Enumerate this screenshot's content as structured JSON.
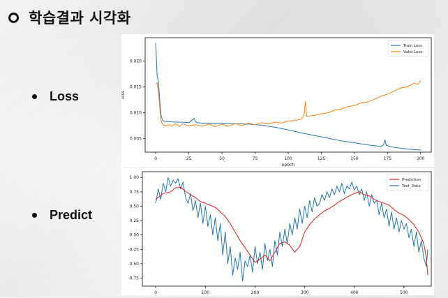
{
  "slide": {
    "title": "학습결과 시각화",
    "bullets": [
      {
        "label": "Loss"
      },
      {
        "label": "Predict"
      }
    ]
  },
  "chart_data": [
    {
      "type": "line",
      "xlabel": "epoch",
      "ylabel": "loss",
      "xlim": [
        -8,
        208
      ],
      "ylim": [
        0.0024,
        0.0245
      ],
      "xticks": [
        "0",
        "25",
        "50",
        "75",
        "100",
        "125",
        "150",
        "175",
        "200"
      ],
      "yticks": [
        "0.005",
        "0.010",
        "0.015",
        "0.020"
      ],
      "legend_position": "top-right",
      "series": [
        {
          "name": "Train Loss",
          "color": "#1f77b4",
          "x": [
            0,
            1,
            2,
            3,
            4,
            5,
            6,
            8,
            10,
            15,
            20,
            25,
            29,
            30,
            31,
            35,
            40,
            50,
            60,
            70,
            80,
            90,
            100,
            110,
            120,
            130,
            140,
            150,
            160,
            170,
            172,
            173,
            174,
            180,
            190,
            195,
            200
          ],
          "y": [
            0.0235,
            0.0172,
            0.016,
            0.0125,
            0.0095,
            0.0086,
            0.0084,
            0.0083,
            0.0083,
            0.0082,
            0.0082,
            0.0081,
            0.0089,
            0.0083,
            0.0081,
            0.008,
            0.008,
            0.008,
            0.0079,
            0.0078,
            0.0076,
            0.0072,
            0.0067,
            0.0061,
            0.0056,
            0.0051,
            0.0046,
            0.0042,
            0.0038,
            0.0035,
            0.0038,
            0.0048,
            0.0037,
            0.0033,
            0.003,
            0.0029,
            0.0028
          ]
        },
        {
          "name": "Valid Loss",
          "color": "#ff7f0e",
          "x": [
            0,
            1,
            2,
            3,
            4,
            5,
            6,
            8,
            10,
            12,
            15,
            18,
            20,
            25,
            30,
            35,
            40,
            45,
            50,
            55,
            60,
            65,
            70,
            75,
            80,
            85,
            90,
            95,
            100,
            105,
            110,
            112,
            113,
            114,
            120,
            125,
            130,
            135,
            140,
            145,
            150,
            155,
            160,
            165,
            170,
            175,
            180,
            185,
            190,
            195,
            198,
            200
          ],
          "y": [
            0.0155,
            0.0158,
            0.014,
            0.011,
            0.0085,
            0.0078,
            0.0076,
            0.0075,
            0.0077,
            0.0074,
            0.0079,
            0.0073,
            0.0079,
            0.0075,
            0.0077,
            0.0074,
            0.0078,
            0.0073,
            0.0078,
            0.0074,
            0.0079,
            0.0075,
            0.008,
            0.0077,
            0.0081,
            0.0078,
            0.0082,
            0.008,
            0.0084,
            0.0085,
            0.0088,
            0.0096,
            0.0122,
            0.0093,
            0.0095,
            0.0098,
            0.01,
            0.0105,
            0.0107,
            0.0112,
            0.0114,
            0.0119,
            0.0121,
            0.0126,
            0.0132,
            0.0136,
            0.0142,
            0.0148,
            0.015,
            0.0157,
            0.0155,
            0.0162
          ]
        }
      ]
    },
    {
      "type": "line",
      "xlim": [
        -27,
        555
      ],
      "ylim": [
        -0.89,
        1.1
      ],
      "xticks": [
        "0",
        "100",
        "200",
        "300",
        "400",
        "500"
      ],
      "yticks": [
        "1.00",
        "0.75",
        "0.50",
        "0.25",
        "0.00",
        "-0.25",
        "-0.50",
        "-0.75"
      ],
      "legend_position": "top-right",
      "series": [
        {
          "name": "Prediction",
          "color": "#e41a1c",
          "x": [
            0,
            15,
            30,
            40,
            50,
            60,
            70,
            80,
            90,
            100,
            120,
            140,
            150,
            160,
            170,
            180,
            190,
            200,
            210,
            220,
            230,
            240,
            250,
            260,
            270,
            280,
            290,
            300,
            310,
            320,
            330,
            340,
            350,
            360,
            370,
            380,
            390,
            400,
            410,
            420,
            430,
            440,
            450,
            460,
            470,
            480,
            490,
            500,
            510,
            520,
            530,
            540,
            545,
            548
          ],
          "y": [
            0.62,
            0.72,
            0.75,
            0.82,
            0.83,
            0.76,
            0.7,
            0.65,
            0.58,
            0.55,
            0.48,
            0.32,
            0.2,
            0.05,
            -0.1,
            -0.22,
            -0.35,
            -0.48,
            -0.42,
            -0.35,
            -0.45,
            -0.3,
            -0.15,
            -0.12,
            -0.18,
            -0.3,
            -0.2,
            0.05,
            0.18,
            0.28,
            0.35,
            0.42,
            0.46,
            0.52,
            0.58,
            0.63,
            0.68,
            0.72,
            0.75,
            0.7,
            0.68,
            0.62,
            0.58,
            0.55,
            0.52,
            0.44,
            0.38,
            0.34,
            0.27,
            0.18,
            0.05,
            -0.15,
            -0.4,
            -0.7
          ]
        },
        {
          "name": "Test_Data",
          "color": "#1f77b4",
          "x": [
            0,
            5,
            10,
            15,
            20,
            25,
            30,
            35,
            40,
            45,
            50,
            55,
            60,
            65,
            70,
            75,
            80,
            85,
            90,
            95,
            100,
            105,
            110,
            115,
            120,
            125,
            130,
            135,
            140,
            145,
            150,
            155,
            160,
            165,
            170,
            175,
            180,
            185,
            190,
            195,
            200,
            205,
            210,
            215,
            220,
            225,
            230,
            235,
            240,
            245,
            250,
            255,
            260,
            265,
            270,
            275,
            280,
            285,
            290,
            295,
            300,
            305,
            310,
            315,
            320,
            325,
            330,
            335,
            340,
            345,
            350,
            355,
            360,
            365,
            370,
            375,
            380,
            385,
            390,
            395,
            400,
            405,
            410,
            415,
            420,
            425,
            430,
            435,
            440,
            445,
            450,
            455,
            460,
            465,
            470,
            475,
            480,
            485,
            490,
            495,
            500,
            505,
            510,
            515,
            520,
            525,
            530,
            535,
            540,
            545,
            548
          ],
          "y": [
            0.55,
            0.8,
            0.62,
            0.9,
            0.75,
            1.0,
            0.85,
            0.95,
            0.9,
            0.98,
            0.8,
            0.92,
            0.65,
            0.55,
            0.72,
            0.42,
            0.6,
            0.3,
            0.55,
            0.2,
            0.5,
            0.15,
            0.35,
            0.0,
            0.3,
            -0.1,
            0.2,
            -0.35,
            0.05,
            -0.5,
            -0.2,
            -0.7,
            -0.4,
            -0.6,
            -0.3,
            -0.8,
            -0.45,
            -0.55,
            -0.35,
            -0.65,
            -0.2,
            -0.5,
            -0.3,
            -0.6,
            -0.15,
            -0.45,
            -0.25,
            -0.55,
            -0.1,
            -0.35,
            0.05,
            -0.2,
            0.1,
            -0.15,
            0.2,
            0.0,
            0.3,
            0.1,
            0.45,
            0.2,
            0.5,
            0.3,
            0.6,
            0.4,
            0.65,
            0.5,
            0.55,
            0.7,
            0.6,
            0.75,
            0.65,
            0.8,
            0.7,
            0.85,
            0.75,
            0.9,
            0.72,
            0.85,
            0.8,
            0.92,
            0.78,
            0.85,
            0.7,
            0.8,
            0.6,
            0.75,
            0.5,
            0.7,
            0.55,
            0.6,
            0.35,
            0.55,
            0.3,
            0.45,
            0.15,
            0.4,
            0.1,
            0.3,
            0.05,
            0.25,
            0.1,
            0.2,
            -0.05,
            0.1,
            -0.2,
            0.05,
            -0.3,
            -0.1,
            -0.4,
            -0.55,
            -0.25
          ]
        }
      ]
    }
  ]
}
